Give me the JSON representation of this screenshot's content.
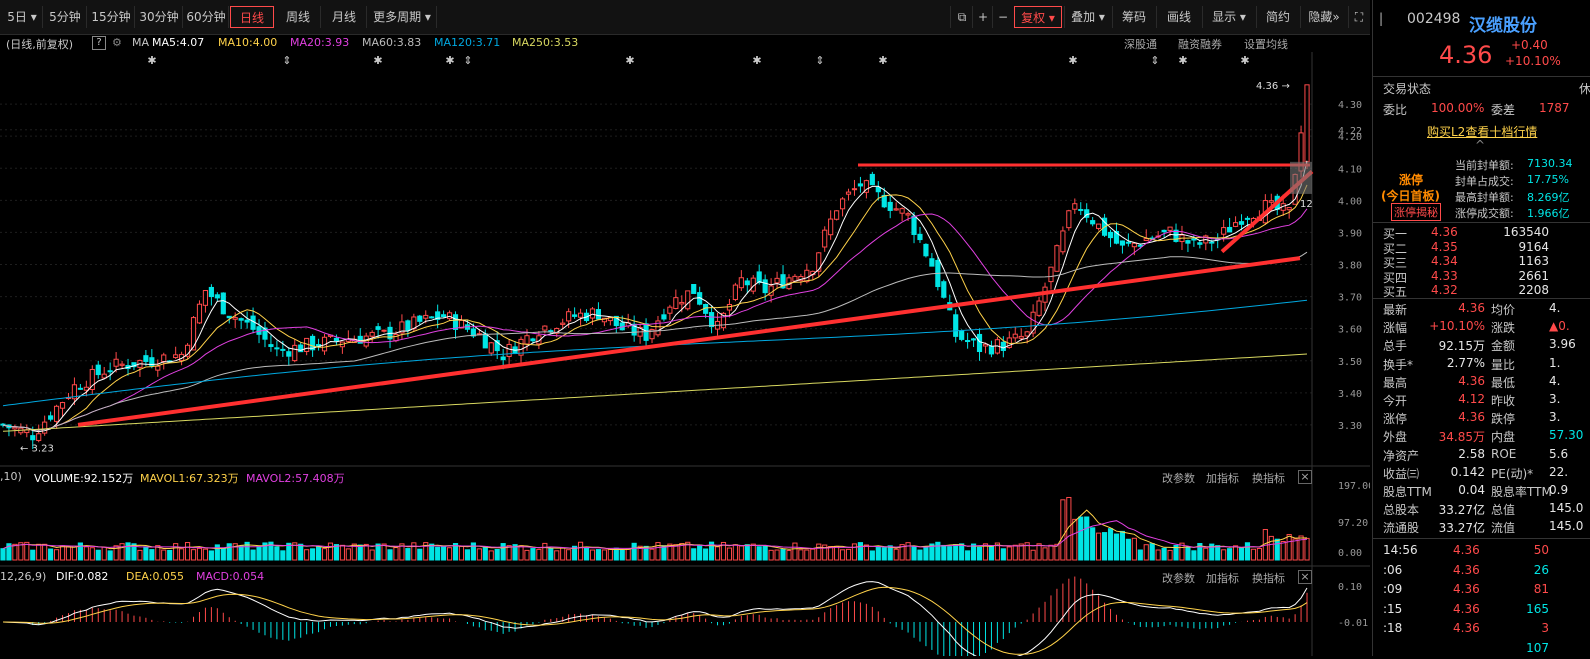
{
  "toolbar": {
    "periods": [
      "5日",
      "5分钟",
      "15分钟",
      "30分钟",
      "60分钟",
      "日线",
      "周线",
      "月线",
      "更多周期"
    ],
    "active_period": "日线",
    "right_buttons": [
      "复权",
      "叠加",
      "筹码",
      "画线",
      "显示",
      "简约",
      "隐藏"
    ],
    "icons": [
      "window-icon",
      "plus-icon",
      "minus-icon",
      "fullscreen-icon"
    ]
  },
  "ma_line": {
    "mode": "(日线,前复权)",
    "help": "?",
    "ma_label": "MA",
    "ma5": "MA5:4.07",
    "ma10": "MA10:4.00",
    "ma20": "MA20:3.93",
    "ma60": "MA60:3.83",
    "ma120": "MA120:3.71",
    "ma250": "MA250:3.53",
    "links": [
      "深股通",
      "融资融券",
      "设置均线"
    ]
  },
  "price_axis": [
    "4.30",
    "4.22",
    "4.20",
    "4.10",
    "4.00",
    "3.90",
    "3.80",
    "3.70",
    "3.60",
    "3.50",
    "3.40",
    "3.30"
  ],
  "price_annotations": {
    "high": "4.36",
    "low": "3.23",
    "right_marker": "12"
  },
  "volume_panel": {
    "header_prefix": ",10)",
    "volume": "VOLUME:92.152万",
    "mavol1": "MAVOL1:67.323万",
    "mavol2": "MAVOL2:57.408万",
    "buttons": [
      "改参数",
      "加指标",
      "换指标"
    ],
    "axis": [
      "197.00",
      "97.20",
      "0.00"
    ]
  },
  "macd_panel": {
    "header_prefix": "12,26,9)",
    "dif": "DIF:0.082",
    "dea": "DEA:0.055",
    "macd": "MACD:0.054",
    "buttons": [
      "改参数",
      "加指标",
      "换指标"
    ],
    "axis": [
      "0.10",
      "-0.01"
    ]
  },
  "stock": {
    "code": "002498",
    "name": "汉缆股份",
    "price": "4.36",
    "change": "+0.40",
    "change_pct": "+10.10%"
  },
  "status": {
    "label": "交易状态",
    "value": "休",
    "weibi_label": "委比",
    "weibi": "100.00%",
    "weicha_label": "委差",
    "weicha": "1787",
    "l2_link": "购买L2查看十档行情"
  },
  "limit_up": {
    "tag1": "涨停",
    "tag2": "(今日首板)",
    "tag3": "涨停揭秘",
    "rows": [
      {
        "label": "当前封单额:",
        "value": "7130.34"
      },
      {
        "label": "封单占成交:",
        "value": "17.75%"
      },
      {
        "label": "最高封单额:",
        "value": "8.269亿"
      },
      {
        "label": "涨停成交额:",
        "value": "1.966亿"
      }
    ]
  },
  "bids": [
    {
      "label": "买一",
      "price": "4.36",
      "vol": "163540"
    },
    {
      "label": "买二",
      "price": "4.35",
      "vol": "9164"
    },
    {
      "label": "买三",
      "price": "4.34",
      "vol": "1163"
    },
    {
      "label": "买四",
      "price": "4.33",
      "vol": "2661"
    },
    {
      "label": "买五",
      "price": "4.32",
      "vol": "2208"
    }
  ],
  "quote": [
    {
      "l1": "最新",
      "v1": "4.36",
      "l2": "均价",
      "v2": "4."
    },
    {
      "l1": "涨幅",
      "v1": "+10.10%",
      "l2": "涨跌",
      "v2": "▲0."
    },
    {
      "l1": "总手",
      "v1": "92.15万",
      "l2": "金额",
      "v2": "3.96"
    },
    {
      "l1": "换手*",
      "v1": "2.77%",
      "l2": "量比",
      "v2": "1."
    },
    {
      "l1": "最高",
      "v1": "4.36",
      "l2": "最低",
      "v2": "4."
    },
    {
      "l1": "今开",
      "v1": "4.12",
      "l2": "昨收",
      "v2": "3."
    },
    {
      "l1": "涨停",
      "v1": "4.36",
      "l2": "跌停",
      "v2": "3."
    },
    {
      "l1": "外盘",
      "v1": "34.85万",
      "l2": "内盘",
      "v2": "57.30"
    },
    {
      "l1": "净资产",
      "v1": "2.58",
      "l2": "ROE",
      "v2": "5.6"
    },
    {
      "l1": "收益㈢",
      "v1": "0.142",
      "l2": "PE(动)*",
      "v2": "22."
    },
    {
      "l1": "股息TTM",
      "v1": "0.04",
      "l2": "股息率TTM",
      "v2": "0.9"
    },
    {
      "l1": "总股本",
      "v1": "33.27亿",
      "l2": "总值",
      "v2": "145.0"
    },
    {
      "l1": "流通股",
      "v1": "33.27亿",
      "l2": "流值",
      "v2": "145.0"
    }
  ],
  "ticks": [
    {
      "time": "14:56",
      "price": "4.36",
      "vol": "50"
    },
    {
      "time": ":06",
      "price": "4.36",
      "vol": "26"
    },
    {
      "time": ":09",
      "price": "4.36",
      "vol": "81"
    },
    {
      "time": ":15",
      "price": "4.36",
      "vol": "165"
    },
    {
      "time": ":18",
      "price": "4.36",
      "vol": "3"
    },
    {
      "time": "",
      "price": "",
      "vol": "107"
    }
  ],
  "colors": {
    "up": "#ff4a4a",
    "down": "#00e5e5",
    "ma5": "#ffffff",
    "ma10": "#ffd24a",
    "ma20": "#e040e0",
    "ma60": "#bbbbbb",
    "ma120": "#00a8e0",
    "ma250": "#d8d860"
  }
}
